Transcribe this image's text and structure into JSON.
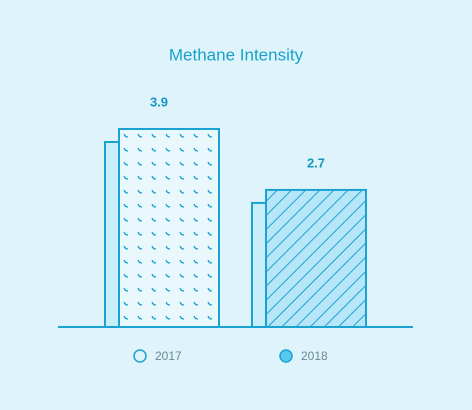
{
  "chart_data": {
    "type": "bar",
    "title": "Methane Intensity",
    "categories": [
      "2017",
      "2018"
    ],
    "values": [
      3.9,
      2.7
    ]
  }
}
